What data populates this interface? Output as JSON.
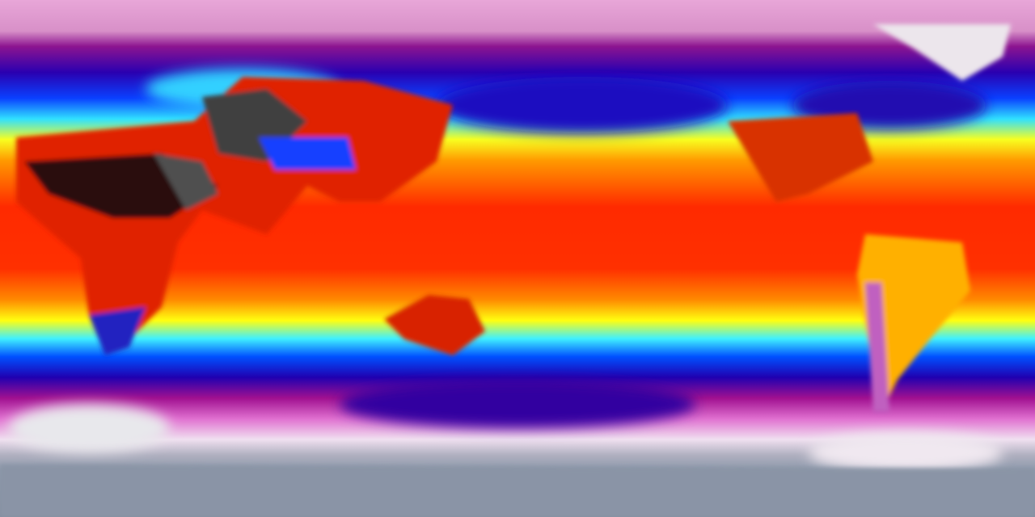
{
  "map": {
    "projection": "equirectangular",
    "palette": [
      "#e6a0d8",
      "#a0148c",
      "#1a00c8",
      "#0050ff",
      "#30e8ff",
      "#ffff00",
      "#ff9000",
      "#ff2000",
      "#d01000",
      "#3a3a3a",
      "#f0f0f0",
      "#8a96a8"
    ]
  }
}
